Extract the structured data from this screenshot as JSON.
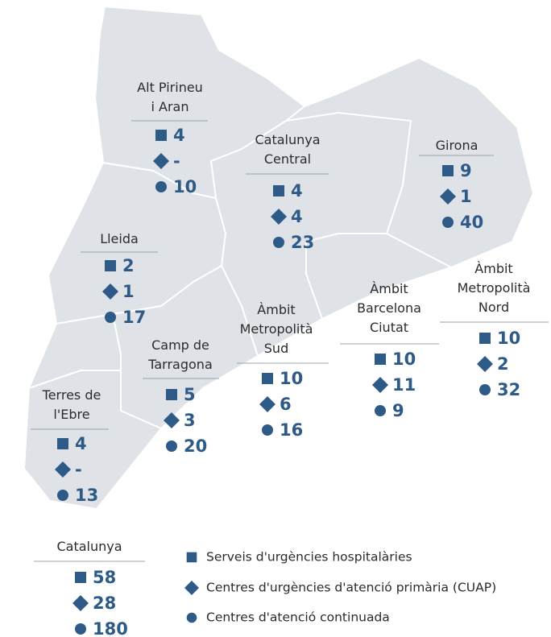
{
  "regions": [
    {
      "name": [
        "Alt Pirineu",
        "i Aran"
      ],
      "values": [
        4,
        "-",
        10
      ]
    },
    {
      "name": [
        "Catalunya",
        "Central"
      ],
      "values": [
        4,
        4,
        23
      ]
    },
    {
      "name": [
        "Girona"
      ],
      "values": [
        9,
        1,
        40
      ]
    },
    {
      "name": [
        "Lleida"
      ],
      "values": [
        2,
        1,
        17
      ]
    },
    {
      "name": [
        "Àmbit",
        "Metropolità",
        "Nord"
      ],
      "values": [
        10,
        2,
        32
      ]
    },
    {
      "name": [
        "Àmbit",
        "Barcelona",
        "Ciutat"
      ],
      "values": [
        10,
        11,
        9
      ]
    },
    {
      "name": [
        "Àmbit",
        "Metropolità",
        "Sud"
      ],
      "values": [
        10,
        6,
        16
      ]
    },
    {
      "name": [
        "Camp de",
        "Tarragona"
      ],
      "values": [
        5,
        3,
        20
      ]
    },
    {
      "name": [
        "Terres de",
        "l'Ebre"
      ],
      "values": [
        4,
        "-",
        13
      ]
    },
    {
      "name": [
        "Catalunya"
      ],
      "values": [
        58,
        28,
        180
      ]
    }
  ],
  "legend": [
    "Serveis d'urgències hospitalàries",
    "Centres d'urgències d'atenció primària (CUAP)",
    "Centres d'atenció continuada"
  ]
}
